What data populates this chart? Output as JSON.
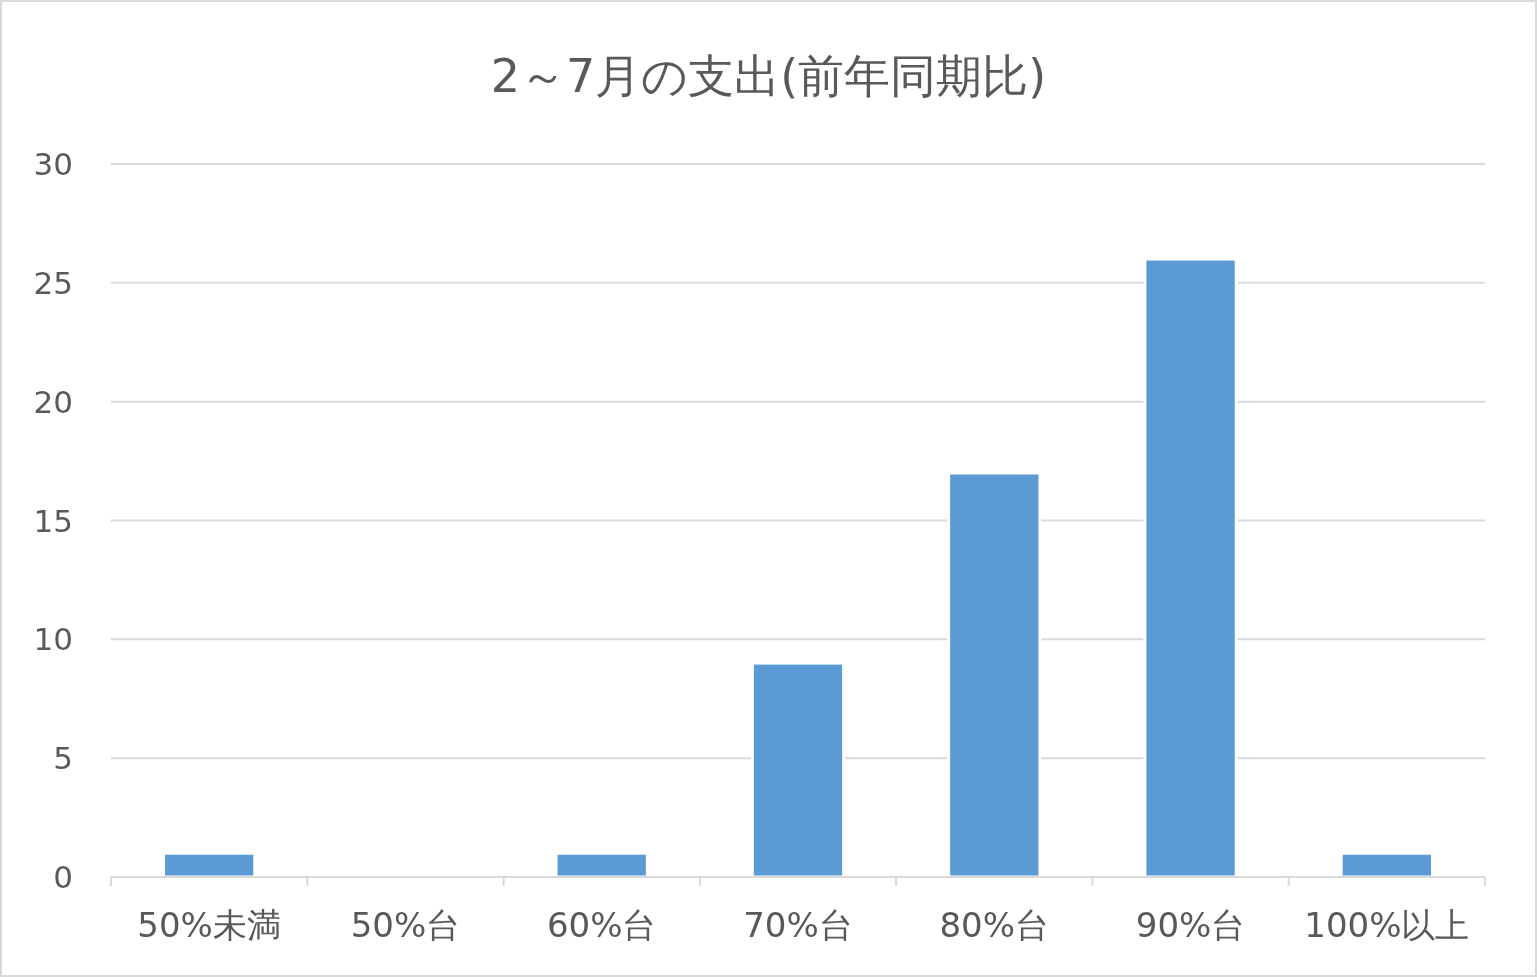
{
  "chart_data": {
    "type": "bar",
    "title": "2～7月の支出(前年同期比)",
    "categories": [
      "50%未満",
      "50%台",
      "60%台",
      "70%台",
      "80%台",
      "90%台",
      "100%以上"
    ],
    "values": [
      1,
      0,
      1,
      9,
      17,
      26,
      1
    ],
    "color": "#5b9bd5",
    "ylim": [
      0,
      30
    ],
    "yticks": [
      0,
      5,
      10,
      15,
      20,
      25,
      30
    ],
    "grid": "y"
  }
}
